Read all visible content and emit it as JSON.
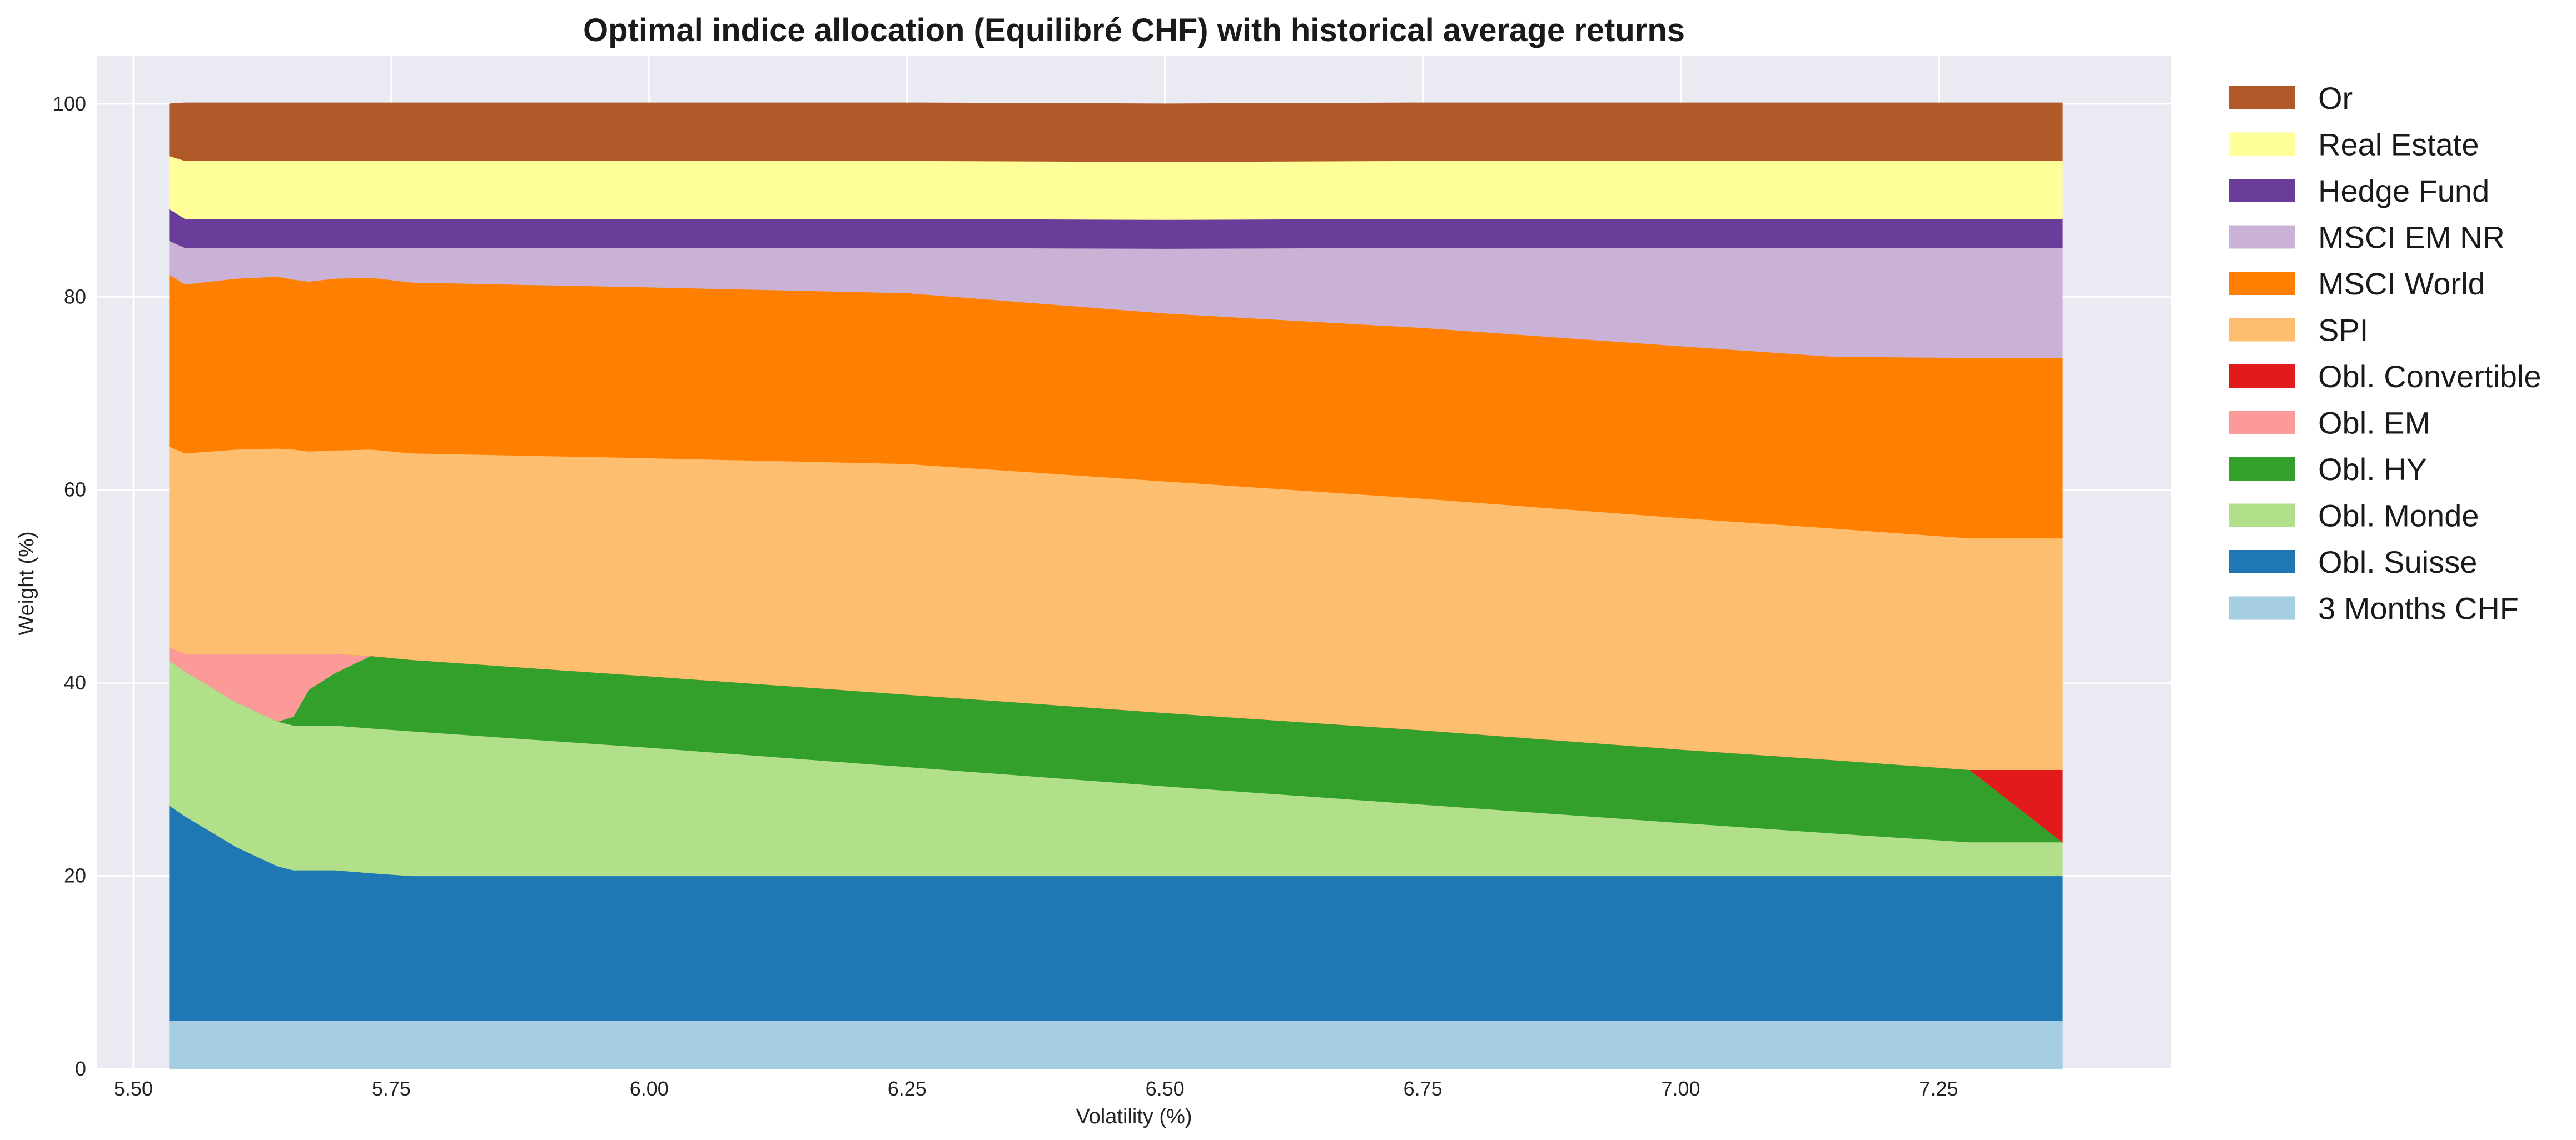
{
  "chart_data": {
    "type": "area",
    "stacked": true,
    "title": "Optimal indice allocation (Equilibré CHF) with historical average returns",
    "xlabel": "Volatility (%)",
    "ylabel": "Weight (%)",
    "xlim": [
      5.465,
      7.475
    ],
    "ylim": [
      0,
      105
    ],
    "xticks": [
      5.5,
      5.75,
      6.0,
      6.25,
      6.5,
      6.75,
      7.0,
      7.25
    ],
    "xtick_labels": [
      "5.50",
      "5.75",
      "6.00",
      "6.25",
      "6.50",
      "6.75",
      "7.00",
      "7.25"
    ],
    "yticks": [
      0,
      20,
      40,
      60,
      80,
      100
    ],
    "ytick_labels": [
      "0",
      "20",
      "40",
      "60",
      "80",
      "100"
    ],
    "grid": true,
    "background": "#eaeaf2",
    "legend_position": "right, outside plot",
    "x": [
      5.535,
      5.55,
      5.6,
      5.64,
      5.655,
      5.67,
      5.695,
      5.73,
      5.77,
      6.0,
      6.25,
      6.5,
      6.75,
      7.0,
      7.15,
      7.28,
      7.37
    ],
    "series": [
      {
        "name": "3 Months CHF",
        "color": "#a6cee3",
        "values": [
          5,
          5,
          5,
          5,
          5,
          5,
          5,
          5,
          5,
          5,
          5,
          5,
          5,
          5,
          5,
          5,
          5
        ]
      },
      {
        "name": "Obl. Suisse",
        "color": "#1f78b4",
        "values": [
          22.3,
          21.2,
          18.0,
          16.0,
          15.6,
          15.6,
          15.6,
          15.3,
          15.0,
          15.0,
          15.0,
          15.0,
          15.0,
          15.0,
          15.0,
          15.0,
          15.0
        ]
      },
      {
        "name": "Obl. Monde",
        "color": "#b2df8a",
        "values": [
          15.0,
          15.0,
          15.0,
          15.0,
          15.0,
          15.0,
          15.0,
          15.0,
          15.0,
          13.3,
          11.3,
          9.3,
          7.4,
          5.5,
          4.4,
          3.5,
          3.5
        ]
      },
      {
        "name": "Obl. HY",
        "color": "#33a02c",
        "values": [
          0,
          0,
          0,
          0,
          0.9,
          3.7,
          5.4,
          7.5,
          7.4,
          7.4,
          7.5,
          7.6,
          7.7,
          7.6,
          7.6,
          7.5,
          0
        ]
      },
      {
        "name": "Obl. EM",
        "color": "#fb9a99",
        "values": [
          1.4,
          1.8,
          5.0,
          7.0,
          6.5,
          3.7,
          2.0,
          0,
          0,
          0,
          0,
          0,
          0,
          0,
          0,
          0,
          0
        ]
      },
      {
        "name": "Obl. Convertible",
        "color": "#e31a1c",
        "values": [
          0,
          0,
          0,
          0,
          0,
          0,
          0,
          0,
          0,
          0,
          0,
          0,
          0,
          0,
          0,
          0,
          7.5
        ]
      },
      {
        "name": "SPI",
        "color": "#fdbf6f",
        "values": [
          20.8,
          20.8,
          21.2,
          21.3,
          21.2,
          21.0,
          21.1,
          21.4,
          21.4,
          22.6,
          23.9,
          24.0,
          24.0,
          24.0,
          24.0,
          24.0,
          24.0
        ]
      },
      {
        "name": "MSCI World",
        "color": "#ff7f00",
        "values": [
          17.8,
          17.5,
          17.7,
          17.8,
          17.6,
          17.6,
          17.8,
          17.8,
          17.7,
          17.7,
          17.7,
          17.4,
          17.7,
          17.8,
          17.8,
          18.7,
          18.7
        ]
      },
      {
        "name": "MSCI EM NR",
        "color": "#cab2d6",
        "values": [
          3.5,
          3.8,
          3.2,
          3.0,
          3.3,
          3.5,
          3.2,
          3.1,
          3.6,
          4.1,
          4.7,
          6.7,
          8.3,
          10.2,
          11.3,
          11.4,
          11.4
        ]
      },
      {
        "name": "Hedge Fund",
        "color": "#6a3d9a",
        "values": [
          3.3,
          3.0,
          3.0,
          3.0,
          3.0,
          3.0,
          3.0,
          3.0,
          3.0,
          3.0,
          3.0,
          3.0,
          3.0,
          3.0,
          3.0,
          3.0,
          3.0
        ]
      },
      {
        "name": "Real Estate",
        "color": "#ffff99",
        "values": [
          5.5,
          6.0,
          6.0,
          6.0,
          6.0,
          6.0,
          6.0,
          6.0,
          6.0,
          6.0,
          6.0,
          6.0,
          6.0,
          6.0,
          6.0,
          6.0,
          6.0
        ]
      },
      {
        "name": "Or",
        "color": "#b15928",
        "values": [
          5.4,
          6.0,
          6.0,
          6.0,
          6.0,
          6.0,
          6.0,
          6.0,
          6.0,
          6.0,
          6.0,
          6.0,
          6.0,
          6.0,
          6.0,
          6.0,
          6.0
        ]
      }
    ]
  }
}
